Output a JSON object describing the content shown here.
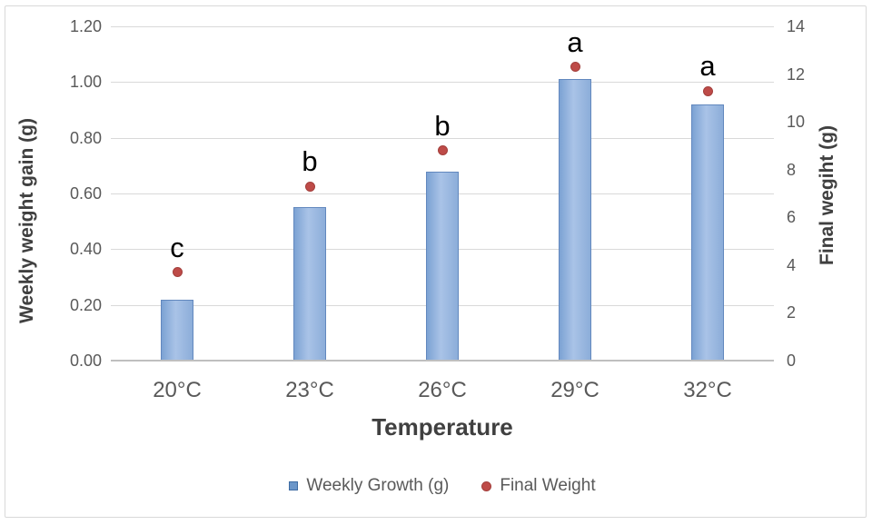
{
  "chart_data": {
    "type": "bar",
    "subtype": "combo-bar-scatter-dual-axis",
    "categories": [
      "20°C",
      "23°C",
      "26°C",
      "29°C",
      "32°C"
    ],
    "series": [
      {
        "name": "Weekly Growth (g)",
        "type": "bar",
        "axis": "left",
        "values": [
          0.22,
          0.55,
          0.68,
          1.01,
          0.92
        ]
      },
      {
        "name": "Final Weight",
        "type": "scatter",
        "axis": "right",
        "values": [
          3.7,
          7.3,
          8.8,
          12.3,
          11.3
        ]
      }
    ],
    "significance_letters": [
      "c",
      "b",
      "b",
      "a",
      "a"
    ],
    "left_axis": {
      "label": "Weekly weight gain (g)",
      "min": 0,
      "max": 1.2,
      "ticks": [
        {
          "label": "0.00",
          "value": 0.0
        },
        {
          "label": "0.20",
          "value": 0.2
        },
        {
          "label": "0.40",
          "value": 0.4
        },
        {
          "label": "0.60",
          "value": 0.6
        },
        {
          "label": "0.80",
          "value": 0.8
        },
        {
          "label": "1.00",
          "value": 1.0
        },
        {
          "label": "1.20",
          "value": 1.2
        }
      ]
    },
    "right_axis": {
      "label": "Final wegiht (g)",
      "min": 0,
      "max": 14,
      "ticks": [
        {
          "label": "0",
          "value": 0
        },
        {
          "label": "2",
          "value": 2
        },
        {
          "label": "4",
          "value": 4
        },
        {
          "label": "6",
          "value": 6
        },
        {
          "label": "8",
          "value": 8
        },
        {
          "label": "10",
          "value": 10
        },
        {
          "label": "12",
          "value": 12
        },
        {
          "label": "14",
          "value": 14
        }
      ]
    },
    "x_axis": {
      "label": "Temperature"
    },
    "legend": [
      {
        "label": "Weekly Growth (g)",
        "marker": "square",
        "color": "#6b96c9"
      },
      {
        "label": "Final Weight",
        "marker": "circle",
        "color": "#be4b48"
      }
    ],
    "layout_hints": {
      "grid": "horizontal-light-gray",
      "legend_position": "bottom-center"
    },
    "colors": {
      "bar_fill": "#8cadd9",
      "bar_border": "#6288be",
      "dot": "#be4b48",
      "gridline": "#d9d9d9",
      "axis_line": "#bfbfbf",
      "tick_text": "#595959",
      "title_text": "#404040",
      "letter_text": "#000000"
    }
  }
}
